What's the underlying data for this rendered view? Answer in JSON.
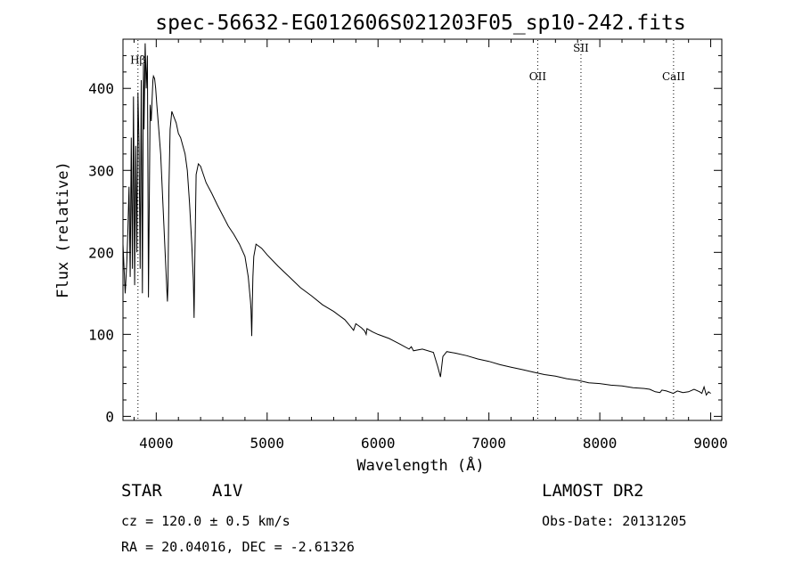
{
  "chart_data": {
    "type": "line",
    "title": "spec-56632-EG012606S021203F05_sp10-242.fits",
    "xlabel": "Wavelength (Å)",
    "ylabel": "Flux (relative)",
    "xlim": [
      3700,
      9100
    ],
    "ylim": [
      -5,
      460
    ],
    "x_ticks": [
      4000,
      5000,
      6000,
      7000,
      8000,
      9000
    ],
    "x_tick_labels": [
      "4000",
      "5000",
      "6000",
      "7000",
      "8000",
      "9000"
    ],
    "y_ticks": [
      0,
      100,
      200,
      300,
      400
    ],
    "y_tick_labels": [
      "0",
      "100",
      "200",
      "300",
      "400"
    ],
    "grid": false,
    "series": [
      {
        "x": [
          3700,
          3720,
          3735,
          3745,
          3755,
          3765,
          3775,
          3785,
          3795,
          3805,
          3815,
          3825,
          3835,
          3845,
          3855,
          3865,
          3875,
          3885,
          3890,
          3900,
          3910,
          3920,
          3930,
          3945,
          3955,
          3965,
          3970,
          3975,
          3985,
          3995,
          4005,
          4020,
          4040,
          4060,
          4080,
          4095,
          4101,
          4106,
          4115,
          4125,
          4140,
          4160,
          4180,
          4200,
          4220,
          4240,
          4260,
          4280,
          4300,
          4320,
          4335,
          4341,
          4347,
          4360,
          4380,
          4400,
          4450,
          4500,
          4550,
          4600,
          4650,
          4700,
          4750,
          4800,
          4830,
          4850,
          4855,
          4861,
          4867,
          4872,
          4880,
          4900,
          4950,
          5000,
          5100,
          5200,
          5300,
          5400,
          5500,
          5600,
          5700,
          5750,
          5780,
          5800,
          5850,
          5880,
          5893,
          5900,
          5950,
          6000,
          6100,
          6200,
          6280,
          6300,
          6320,
          6400,
          6500,
          6540,
          6563,
          6585,
          6620,
          6700,
          6800,
          6900,
          7000,
          7100,
          7200,
          7300,
          7400,
          7500,
          7600,
          7700,
          7800,
          7900,
          8000,
          8100,
          8200,
          8300,
          8400,
          8450,
          8500,
          8542,
          8560,
          8600,
          8662,
          8700,
          8750,
          8800,
          8850,
          8900,
          8920,
          8940,
          8960,
          8980,
          9000
        ],
        "y": [
          210,
          150,
          190,
          230,
          280,
          170,
          340,
          180,
          390,
          160,
          330,
          200,
          395,
          330,
          180,
          410,
          150,
          430,
          350,
          455,
          400,
          440,
          145,
          380,
          360,
          395,
          410,
          415,
          412,
          400,
          380,
          355,
          320,
          260,
          200,
          155,
          140,
          160,
          280,
          350,
          372,
          365,
          358,
          345,
          340,
          330,
          320,
          300,
          260,
          210,
          165,
          120,
          180,
          295,
          308,
          305,
          285,
          272,
          258,
          245,
          232,
          222,
          210,
          195,
          170,
          140,
          130,
          98,
          140,
          170,
          195,
          210,
          205,
          197,
          183,
          170,
          157,
          147,
          136,
          128,
          118,
          110,
          105,
          113,
          108,
          104,
          100,
          107,
          103,
          100,
          95,
          88,
          82,
          85,
          80,
          82,
          78,
          60,
          48,
          73,
          79,
          77,
          74,
          70,
          67,
          63,
          60,
          57,
          54,
          51,
          49,
          46,
          44,
          41,
          40,
          38,
          37,
          35,
          34,
          33,
          30,
          29,
          32,
          31,
          28,
          31,
          29,
          30,
          33,
          30,
          28,
          36,
          26,
          30,
          28
        ]
      }
    ],
    "annotations": [
      {
        "label": "Hβ",
        "x": 3835,
        "y": 430,
        "vline": true
      },
      {
        "label": "OII",
        "x": 7440,
        "y": 410,
        "vline": true
      },
      {
        "label": "SII",
        "x": 7830,
        "y": 445,
        "vline": true
      },
      {
        "label": "CaII",
        "x": 8665,
        "y": 410,
        "vline": true
      }
    ]
  },
  "info": {
    "object_type": "STAR",
    "spectral_class": "A1V",
    "survey": "LAMOST DR2",
    "cz": "cz = 120.0 ± 0.5 km/s",
    "obs_date": "Obs-Date: 20131205",
    "coords": "RA =  20.04016, DEC =  -2.61326"
  }
}
